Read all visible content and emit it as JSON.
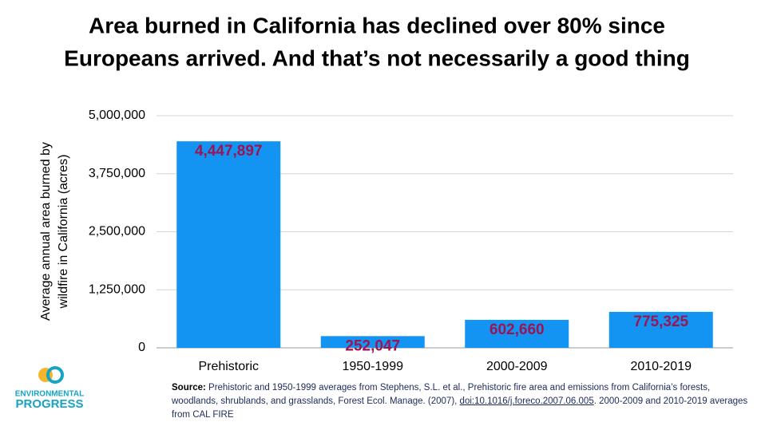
{
  "chart_data": {
    "type": "bar",
    "title": [
      "Area burned in California has declined over 80% since",
      "Europeans arrived. And that’s not necessarily a good thing"
    ],
    "y_label": [
      "Average annual area burned by",
      "wildfire in California (acres)"
    ],
    "categories": [
      "Prehistoric",
      "1950-1999",
      "2000-2009",
      "2010-2019"
    ],
    "values": [
      4447897,
      252047,
      602660,
      775325
    ],
    "value_labels": [
      "4,447,897",
      "252,047",
      "602,660",
      "775,325"
    ],
    "color": "#1494f2",
    "label_color": "#9c1553",
    "ylim": [
      0,
      5000000
    ],
    "yticks": [
      0,
      {
        "value": 1250000,
        "label": "1,250,000"
      },
      {
        "value": 2500000,
        "label": "2,500,000"
      },
      {
        "value": 3750000,
        "label": "3,750,000"
      },
      {
        "value": 5000000,
        "label": "5,000,000"
      }
    ],
    "grid": true
  },
  "source": {
    "label": "Source:",
    "parts": [
      "Prehistoric and 1950-1999 averages from Stephens, S.L. et al., Prehistoric fire area and emissions from California’s forests, woodlands, shrublands, and grasslands, Forest Ecol. Manage. (2007), ",
      "doi:10.1016/j.foreco.2007.06.005",
      ". 2000-2009 and 2010-2019 averages from CAL FIRE"
    ]
  },
  "logo": {
    "line1": "ENVIRONMENTAL",
    "line2": "PROGRESS"
  }
}
